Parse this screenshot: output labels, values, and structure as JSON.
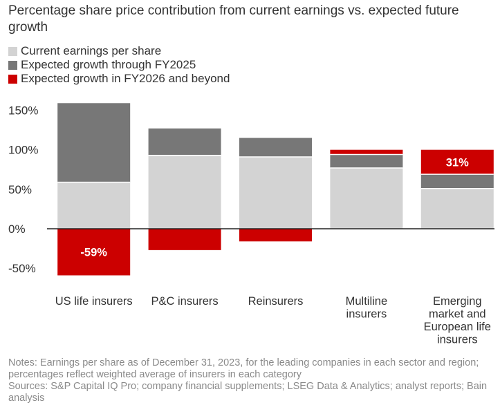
{
  "title": "Percentage share price contribution from current earnings vs. expected future growth",
  "legend": {
    "items": [
      {
        "label": "Current earnings per share",
        "color": "#d3d3d3"
      },
      {
        "label": "Expected growth through FY2025",
        "color": "#777777"
      },
      {
        "label": "Expected growth in FY2026 and beyond",
        "color": "#cc0000"
      }
    ]
  },
  "chart_data": {
    "type": "bar",
    "stacked": true,
    "categories": [
      [
        "US life insurers"
      ],
      [
        "P&C insurers"
      ],
      [
        "Reinsurers"
      ],
      [
        "Multiline",
        "insurers"
      ],
      [
        "Emerging",
        "market and",
        "European life",
        "insurers"
      ]
    ],
    "series": [
      {
        "name": "Current earnings per share",
        "color": "#d3d3d3",
        "values": [
          59,
          93,
          91,
          77,
          51
        ]
      },
      {
        "name": "Expected growth through FY2025",
        "color": "#777777",
        "values": [
          100,
          34,
          24,
          17,
          18
        ]
      },
      {
        "name": "Expected growth in FY2026 and beyond",
        "color": "#cc0000",
        "values": [
          -59,
          -27,
          -16,
          6,
          31
        ]
      }
    ],
    "data_labels": [
      {
        "category_index": 0,
        "series_index": 2,
        "text": "-59%"
      },
      {
        "category_index": 4,
        "series_index": 2,
        "text": "31%"
      }
    ],
    "y_ticks": [
      {
        "value": 150,
        "label": "150%"
      },
      {
        "value": 100,
        "label": "100%"
      },
      {
        "value": 50,
        "label": "50%"
      },
      {
        "value": 0,
        "label": "0%"
      },
      {
        "value": -50,
        "label": "-50%"
      }
    ],
    "ylim": [
      -60,
      160
    ],
    "xlabel": "",
    "ylabel": ""
  },
  "notes": {
    "line1": "Notes: Earnings per share as of December 31, 2023, for the leading companies in each sector and region; percentages reflect weighted average of insurers in each category",
    "line2": "Sources: S&P Capital IQ Pro; company financial supplements; LSEG Data & Analytics; analyst reports; Bain analysis"
  }
}
